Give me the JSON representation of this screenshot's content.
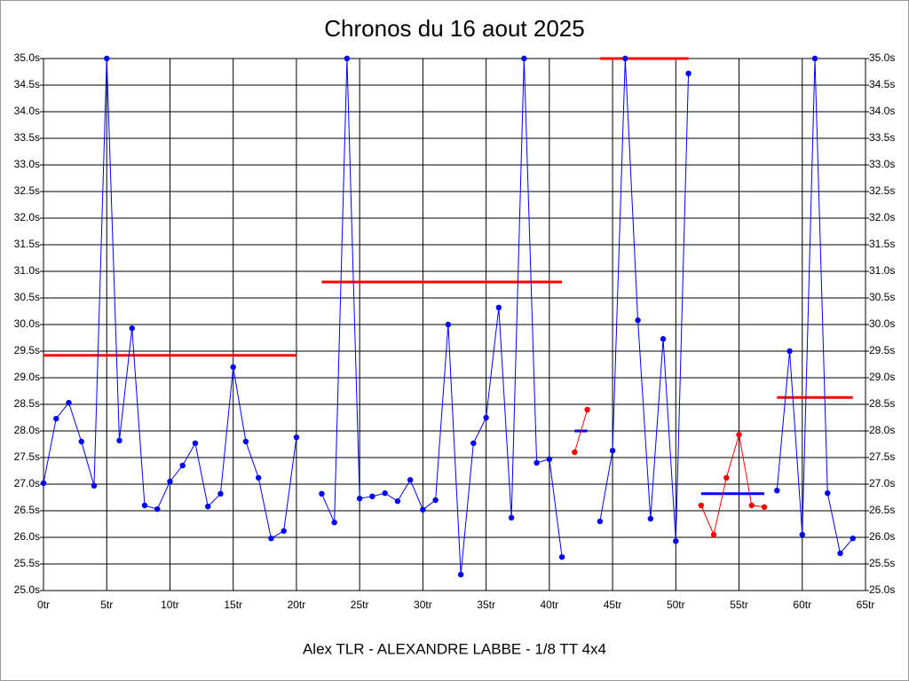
{
  "chart_data": {
    "type": "line",
    "title": "Chronos du 16 aout 2025",
    "x_label": "Alex TLR - ALEXANDRE LABBE - 1/8 TT 4x4",
    "x": [
      0,
      1,
      2,
      3,
      4,
      5,
      6,
      7,
      8,
      9,
      10,
      11,
      12,
      13,
      14,
      15,
      16,
      17,
      18,
      19,
      20,
      21,
      22,
      23,
      24,
      25,
      26,
      27,
      28,
      29,
      30,
      31,
      32,
      33,
      34,
      35,
      36,
      37,
      38,
      39,
      40,
      41,
      42,
      43,
      44,
      45,
      46,
      47,
      48,
      49,
      50,
      51,
      52,
      53,
      54,
      55,
      56,
      57,
      58,
      59,
      60,
      61,
      62,
      63,
      64
    ],
    "series": [
      {
        "color": "#0000ff",
        "values": [
          27.02,
          28.23,
          28.53,
          27.8,
          26.97,
          35.0,
          27.82,
          29.93,
          26.6,
          26.53,
          27.05,
          27.35,
          27.77,
          26.58,
          26.82,
          29.2,
          27.8,
          27.12,
          25.98,
          26.12,
          27.88,
          null,
          26.82,
          26.28,
          35.0,
          26.73,
          26.77,
          26.83,
          26.68,
          27.08,
          26.52,
          26.7,
          30.0,
          25.3,
          27.77,
          28.25,
          30.32,
          26.37,
          35.0,
          27.4,
          27.47,
          25.63,
          null,
          null,
          26.3,
          27.63,
          35.0,
          30.08,
          26.35,
          29.73,
          25.93,
          34.72,
          null,
          null,
          null,
          null,
          null,
          null,
          26.88,
          29.5,
          26.05,
          35.0,
          26.83,
          25.7,
          25.98
        ]
      },
      {
        "color": "#ff0000",
        "values": [
          null,
          null,
          null,
          null,
          null,
          null,
          null,
          null,
          null,
          null,
          null,
          null,
          null,
          null,
          null,
          null,
          null,
          null,
          null,
          null,
          null,
          null,
          null,
          null,
          null,
          null,
          null,
          null,
          null,
          null,
          null,
          null,
          null,
          null,
          null,
          null,
          null,
          null,
          null,
          null,
          null,
          null,
          27.6,
          28.4,
          null,
          null,
          null,
          null,
          null,
          null,
          null,
          null,
          26.6,
          26.05,
          27.12,
          27.93,
          26.6,
          26.57,
          null,
          null,
          null,
          null,
          null,
          null,
          null
        ]
      }
    ],
    "averages": [
      {
        "color": "#ff0000",
        "x": [
          0,
          20
        ],
        "value": 29.42
      },
      {
        "color": "#ff0000",
        "x": [
          22,
          41
        ],
        "value": 30.8
      },
      {
        "color": "#0000ff",
        "x": [
          42,
          43
        ],
        "value": 28.0
      },
      {
        "color": "#ff0000",
        "x": [
          44,
          51
        ],
        "value": 35.0
      },
      {
        "color": "#0000ff",
        "x": [
          52,
          57
        ],
        "value": 26.82
      },
      {
        "color": "#ff0000",
        "x": [
          58,
          64
        ],
        "value": 28.63
      }
    ],
    "xlim": [
      0,
      65
    ],
    "xticks": [
      {
        "value": 0,
        "label": "0tr"
      },
      {
        "value": 5,
        "label": "5tr"
      },
      {
        "value": 10,
        "label": "10tr"
      },
      {
        "value": 15,
        "label": "15tr"
      },
      {
        "value": 20,
        "label": "20tr"
      },
      {
        "value": 25,
        "label": "25tr"
      },
      {
        "value": 30,
        "label": "30tr"
      },
      {
        "value": 35,
        "label": "35tr"
      },
      {
        "value": 40,
        "label": "40tr"
      },
      {
        "value": 45,
        "label": "45tr"
      },
      {
        "value": 50,
        "label": "50tr"
      },
      {
        "value": 55,
        "label": "55tr"
      },
      {
        "value": 60,
        "label": "60tr"
      },
      {
        "value": 65,
        "label": "65tr"
      }
    ],
    "ylim": [
      25,
      35
    ],
    "yticks": [
      {
        "value": 25,
        "label": "25.0s"
      },
      {
        "value": 25.5,
        "label": "25.5s"
      },
      {
        "value": 26,
        "label": "26.0s"
      },
      {
        "value": 26.5,
        "label": "26.5s"
      },
      {
        "value": 27,
        "label": "27.0s"
      },
      {
        "value": 27.5,
        "label": "27.5s"
      },
      {
        "value": 28,
        "label": "28.0s"
      },
      {
        "value": 28.5,
        "label": "28.5s"
      },
      {
        "value": 29,
        "label": "29.0s"
      },
      {
        "value": 29.5,
        "label": "29.5s"
      },
      {
        "value": 30,
        "label": "30.0s"
      },
      {
        "value": 30.5,
        "label": "30.5s"
      },
      {
        "value": 31,
        "label": "31.0s"
      },
      {
        "value": 31.5,
        "label": "31.5s"
      },
      {
        "value": 32,
        "label": "32.0s"
      },
      {
        "value": 32.5,
        "label": "32.5s"
      },
      {
        "value": 33,
        "label": "33.0s"
      },
      {
        "value": 33.5,
        "label": "33.5s"
      },
      {
        "value": 34,
        "label": "34.0s"
      },
      {
        "value": 34.5,
        "label": "34.5s"
      },
      {
        "value": 35,
        "label": "35.0s"
      }
    ],
    "grid": true
  }
}
